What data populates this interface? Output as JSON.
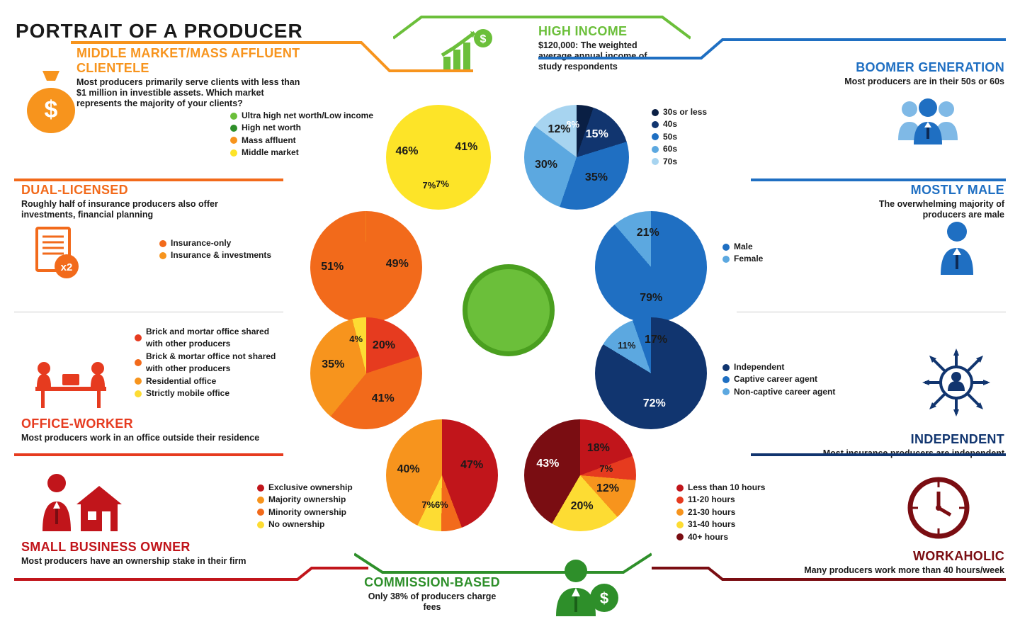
{
  "title": "PORTRAIT OF A PRODUCER",
  "bg": "#ffffff",
  "center_color": "#6bbf3a",
  "center_border": "#4a9f1f",
  "sections": {
    "high_income": {
      "title": "HIGH INCOME",
      "subtitle": "$120,000: The weighted average annual income of study respondents",
      "color": "#6bbf3a"
    },
    "boomer": {
      "title": "BOOMER GENERATION",
      "subtitle": "Most producers are in their 50s or 60s",
      "color": "#1f6fc2",
      "icon_color": "#1f6fc2"
    },
    "male": {
      "title": "MOSTLY MALE",
      "subtitle": "The overwhelming majority of producers are male",
      "color": "#1f6fc2",
      "icon_color": "#1f6fc2"
    },
    "independent": {
      "title": "INDEPENDENT",
      "subtitle": "Most insurance producers are independent",
      "color": "#11356f",
      "icon_color": "#11356f"
    },
    "workaholic": {
      "title": "WORKAHOLIC",
      "subtitle": "Many producers work more than 40 hours/week",
      "color": "#7a0d12",
      "icon_color": "#7a0d12"
    },
    "commission": {
      "title": "COMMISSION-BASED",
      "subtitle": "Only 38% of producers charge fees",
      "color": "#2e8f2a",
      "icon_color": "#2e8f2a"
    },
    "small_biz": {
      "title": "SMALL BUSINESS OWNER",
      "subtitle": "Most producers have an ownership stake in their firm",
      "color": "#c1151b",
      "icon_color": "#c1151b"
    },
    "office": {
      "title": "OFFICE-WORKER",
      "subtitle": "Most producers work in an office outside their residence",
      "color": "#e63b1f",
      "icon_color": "#e63b1f"
    },
    "dual": {
      "title": "DUAL-LICENSED",
      "subtitle": "Roughly half of insurance producers also offer investments, financial planning",
      "color": "#f26a1b",
      "icon_color": "#f26a1b"
    },
    "clientele": {
      "title": "MIDDLE MARKET/MASS AFFLUENT CLIENTELE",
      "subtitle": "Most producers primarily serve clients with less than $1 million in investible assets. Which market represents the majority of your clients?",
      "color": "#f7941d",
      "icon_color": "#f7941d"
    }
  },
  "pies": {
    "clientele": {
      "size": 148,
      "slices": [
        {
          "label": "46%",
          "value": 46,
          "color": "#fde428"
        },
        {
          "label": "41%",
          "value": 41,
          "color": "#f7941d"
        },
        {
          "label": "7%",
          "value": 7,
          "color": "#2e8f2a"
        },
        {
          "label": "7%",
          "value": 7,
          "color": "#6bbf3a"
        }
      ],
      "legend": [
        {
          "color": "#6bbf3a",
          "label": "Ultra high net worth/Low income"
        },
        {
          "color": "#2e8f2a",
          "label": "High net worth"
        },
        {
          "color": "#f7941d",
          "label": "Mass affluent"
        },
        {
          "color": "#fde428",
          "label": "Middle market"
        }
      ]
    },
    "boomer": {
      "size": 148,
      "slices": [
        {
          "label": "8%",
          "value": 8,
          "color": "#0a1f44"
        },
        {
          "label": "15%",
          "value": 15,
          "color": "#11356f"
        },
        {
          "label": "35%",
          "value": 35,
          "color": "#1f6fc2"
        },
        {
          "label": "30%",
          "value": 30,
          "color": "#5ca8e0"
        },
        {
          "label": "12%",
          "value": 12,
          "color": "#a7d4f0"
        }
      ],
      "legend": [
        {
          "color": "#0a1f44",
          "label": "30s or less"
        },
        {
          "color": "#11356f",
          "label": "40s"
        },
        {
          "color": "#1f6fc2",
          "label": "50s"
        },
        {
          "color": "#5ca8e0",
          "label": "60s"
        },
        {
          "color": "#a7d4f0",
          "label": "70s"
        }
      ]
    },
    "dual": {
      "size": 158,
      "slices": [
        {
          "label": "51%",
          "value": 51,
          "color": "#f26a1b"
        },
        {
          "label": "49%",
          "value": 49,
          "color": "#f7941d"
        }
      ],
      "legend": [
        {
          "color": "#f26a1b",
          "label": "Insurance-only"
        },
        {
          "color": "#f7941d",
          "label": "Insurance & investments"
        }
      ]
    },
    "male": {
      "size": 158,
      "slices": [
        {
          "label": "79%",
          "value": 79,
          "color": "#1f6fc2"
        },
        {
          "label": "21%",
          "value": 21,
          "color": "#5ca8e0"
        }
      ],
      "legend": [
        {
          "color": "#1f6fc2",
          "label": "Male"
        },
        {
          "color": "#5ca8e0",
          "label": "Female"
        }
      ]
    },
    "office": {
      "size": 158,
      "slices": [
        {
          "label": "20%",
          "value": 20,
          "color": "#e63b1f"
        },
        {
          "label": "41%",
          "value": 41,
          "color": "#f26a1b"
        },
        {
          "label": "35%",
          "value": 35,
          "color": "#f7941d"
        },
        {
          "label": "4%",
          "value": 4,
          "color": "#fddc33"
        }
      ],
      "legend": [
        {
          "color": "#e63b1f",
          "label": "Brick and mortar office shared with other producers"
        },
        {
          "color": "#f26a1b",
          "label": "Brick & mortar office not shared with other producers"
        },
        {
          "color": "#f7941d",
          "label": "Residential office"
        },
        {
          "color": "#fddc33",
          "label": "Strictly mobile office"
        }
      ]
    },
    "independent": {
      "size": 158,
      "slices": [
        {
          "label": "72%",
          "value": 72,
          "color": "#11356f"
        },
        {
          "label": "11%",
          "value": 11,
          "color": "#5ca8e0"
        },
        {
          "label": "17%",
          "value": 17,
          "color": "#1f6fc2"
        }
      ],
      "legend": [
        {
          "color": "#11356f",
          "label": "Independent"
        },
        {
          "color": "#1f6fc2",
          "label": "Captive career agent"
        },
        {
          "color": "#5ca8e0",
          "label": "Non-captive career agent"
        }
      ]
    },
    "small_biz": {
      "size": 158,
      "slices": [
        {
          "label": "47%",
          "value": 47,
          "color": "#c1151b"
        },
        {
          "label": "6%",
          "value": 6,
          "color": "#f26a1b"
        },
        {
          "label": "7%",
          "value": 7,
          "color": "#fddc33"
        },
        {
          "label": "40%",
          "value": 40,
          "color": "#f7941d"
        }
      ],
      "legend": [
        {
          "color": "#c1151b",
          "label": "Exclusive ownership"
        },
        {
          "color": "#f7941d",
          "label": "Majority ownership"
        },
        {
          "color": "#f26a1b",
          "label": "Minority ownership"
        },
        {
          "color": "#fddc33",
          "label": "No ownership"
        }
      ]
    },
    "workaholic": {
      "size": 158,
      "slices": [
        {
          "label": "18%",
          "value": 18,
          "color": "#c1151b"
        },
        {
          "label": "7%",
          "value": 7,
          "color": "#e63b1f"
        },
        {
          "label": "12%",
          "value": 12,
          "color": "#f7941d"
        },
        {
          "label": "20%",
          "value": 20,
          "color": "#fddc33"
        },
        {
          "label": "43%",
          "value": 43,
          "color": "#7a0d12"
        }
      ],
      "legend": [
        {
          "color": "#c1151b",
          "label": "Less than 10 hours"
        },
        {
          "color": "#e63b1f",
          "label": "11-20 hours"
        },
        {
          "color": "#f7941d",
          "label": "21-30 hours"
        },
        {
          "color": "#fddc33",
          "label": "31-40 hours"
        },
        {
          "color": "#7a0d12",
          "label": "40+ hours"
        }
      ]
    }
  }
}
